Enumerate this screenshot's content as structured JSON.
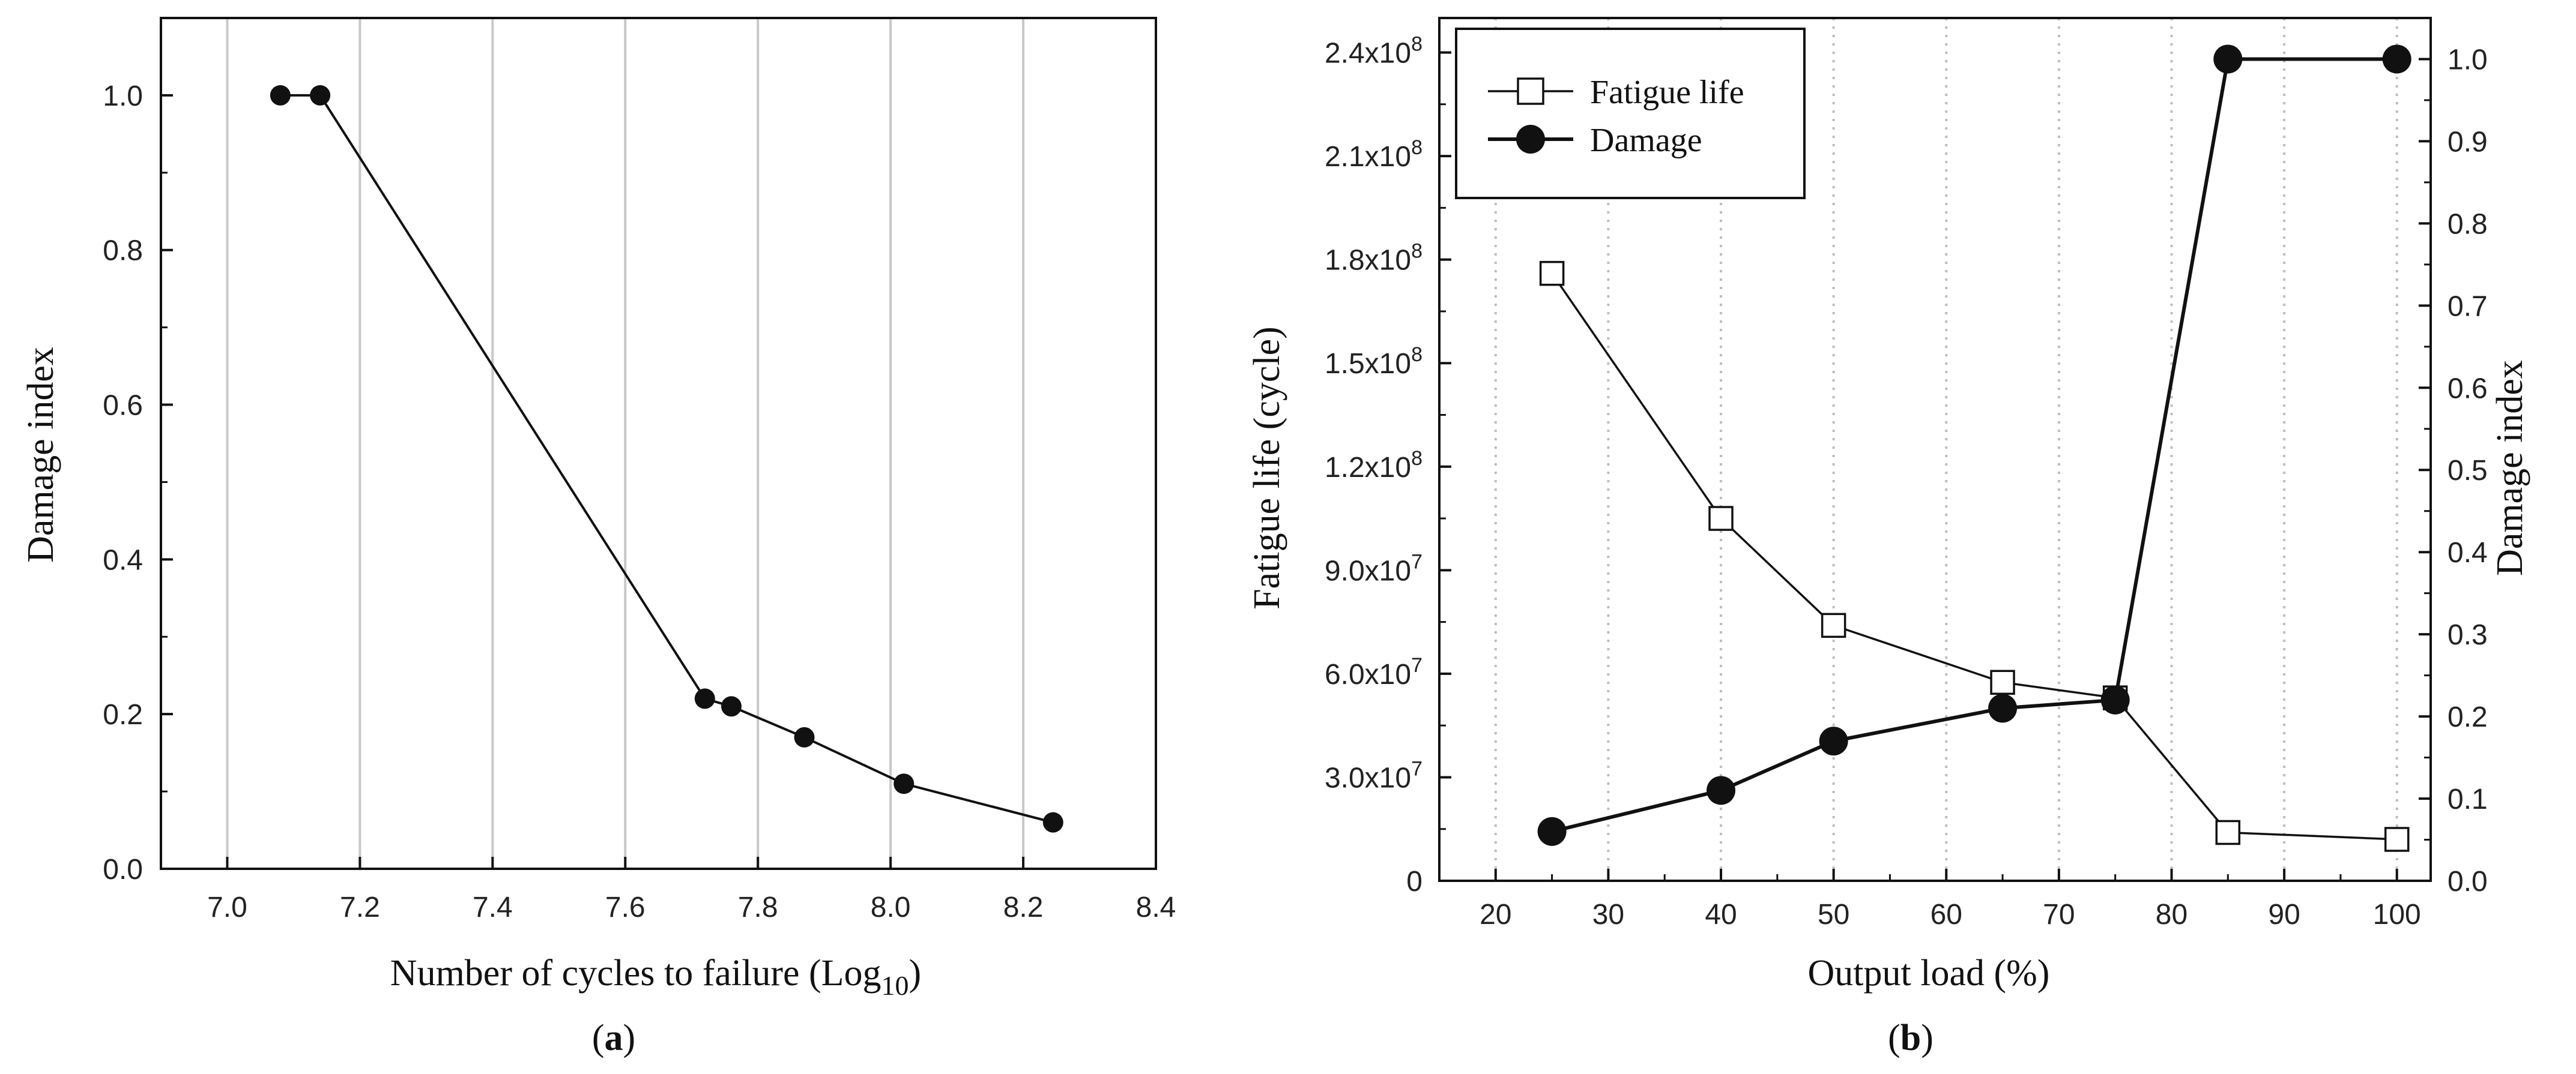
{
  "chart_data": [
    {
      "type": "line",
      "panel_label": "a",
      "xlabel": "Number of cycles to failure (Log",
      "xlabel_sub": "10",
      "xlabel_close": ")",
      "ylabel": "Damage index",
      "xlim": [
        6.9,
        8.4
      ],
      "ylim": [
        0.0,
        1.1
      ],
      "xticks": [
        7.0,
        7.2,
        7.4,
        7.6,
        7.8,
        8.0,
        8.2,
        8.4
      ],
      "xtick_labels": [
        "7.0",
        "7.2",
        "7.4",
        "7.6",
        "7.8",
        "8.0",
        "8.2",
        "8.4"
      ],
      "yticks": [
        0.0,
        0.2,
        0.4,
        0.6,
        0.8,
        1.0
      ],
      "ytick_labels": [
        "0.0",
        "0.2",
        "0.4",
        "0.6",
        "0.8",
        "1.0"
      ],
      "grid": "vertical",
      "series": [
        {
          "name": "Damage index",
          "x": [
            7.08,
            7.14,
            7.72,
            7.76,
            7.87,
            8.02,
            8.245
          ],
          "y": [
            1.0,
            1.0,
            0.22,
            0.21,
            0.17,
            0.11,
            0.06
          ]
        }
      ]
    },
    {
      "type": "line",
      "panel_label": "b",
      "xlabel": "Output load (%)",
      "ylabel": "Fatigue life (cycle)",
      "ylabel_right": "Damage index",
      "xlim": [
        15,
        103
      ],
      "ylim": [
        0,
        250000000
      ],
      "ylim_right": [
        0,
        1.05
      ],
      "xticks": [
        20,
        30,
        40,
        50,
        60,
        70,
        80,
        90,
        100
      ],
      "xtick_labels": [
        "20",
        "30",
        "40",
        "50",
        "60",
        "70",
        "80",
        "90",
        "100"
      ],
      "yticks": [
        0,
        30000000,
        60000000,
        90000000,
        120000000,
        150000000,
        180000000,
        210000000,
        240000000
      ],
      "ytick_labels": [
        {
          "base": "0",
          "exp": ""
        },
        {
          "base": "3.0x10",
          "exp": "7"
        },
        {
          "base": "6.0x10",
          "exp": "7"
        },
        {
          "base": "9.0x10",
          "exp": "7"
        },
        {
          "base": "1.2x10",
          "exp": "8"
        },
        {
          "base": "1.5x10",
          "exp": "8"
        },
        {
          "base": "1.8x10",
          "exp": "8"
        },
        {
          "base": "2.1x10",
          "exp": "8"
        },
        {
          "base": "2.4x10",
          "exp": "8"
        }
      ],
      "yticks_right": [
        0.0,
        0.1,
        0.2,
        0.3,
        0.4,
        0.5,
        0.6,
        0.7,
        0.8,
        0.9,
        1.0
      ],
      "ytick_labels_right": [
        "0.0",
        "0.1",
        "0.2",
        "0.3",
        "0.4",
        "0.5",
        "0.6",
        "0.7",
        "0.8",
        "0.9",
        "1.0"
      ],
      "grid": "vertical-dotted",
      "legend": {
        "position": "top-left",
        "entries": [
          "Fatigue life",
          "Damage"
        ]
      },
      "series": [
        {
          "name": "Fatigue life",
          "axis": "left",
          "marker": "open-square",
          "x": [
            25,
            40,
            50,
            65,
            75,
            85,
            100
          ],
          "y": [
            176000000,
            105000000,
            74000000,
            57500000,
            53000000,
            14000000,
            12000000
          ]
        },
        {
          "name": "Damage",
          "axis": "right",
          "marker": "filled-circle",
          "x": [
            25,
            40,
            50,
            65,
            75,
            85,
            100
          ],
          "y": [
            0.06,
            0.11,
            0.17,
            0.21,
            0.22,
            1.0,
            1.0
          ]
        }
      ]
    }
  ]
}
